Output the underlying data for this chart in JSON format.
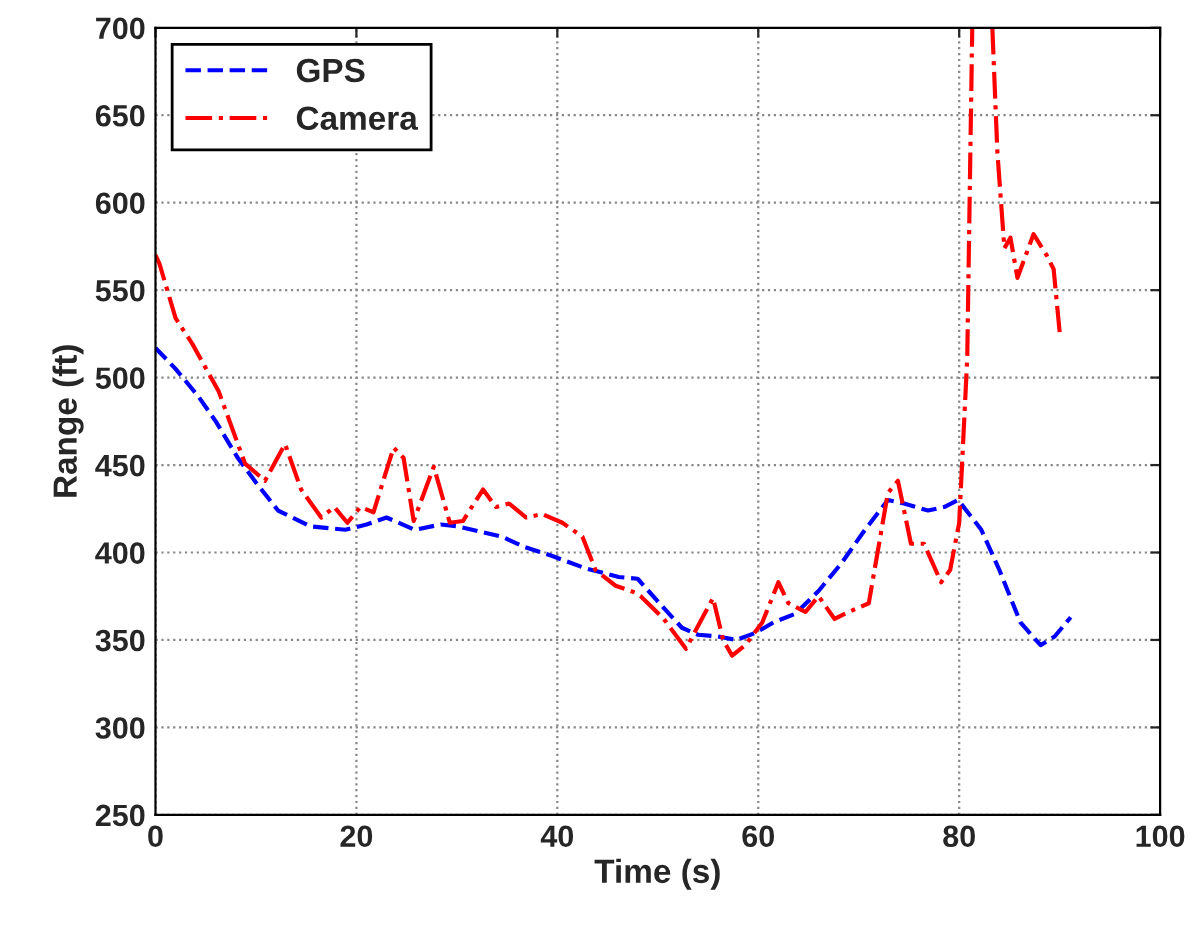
{
  "chart_data": {
    "type": "line",
    "xlabel": "Time (s)",
    "ylabel": "Range (ft)",
    "xlim": [
      0,
      100
    ],
    "ylim": [
      250,
      700
    ],
    "xticks": [
      0,
      20,
      40,
      60,
      80,
      100
    ],
    "yticks": [
      250,
      300,
      350,
      400,
      450,
      500,
      550,
      600,
      650,
      700
    ],
    "grid": true,
    "legend": "top left",
    "marker": "none",
    "series": [
      {
        "name": "GPS",
        "color": "#0000ff",
        "line_style": "dashed",
        "x": [
          0,
          2,
          4.3,
          6,
          8.2,
          10,
          12.2,
          15.4,
          18.9,
          21,
          23,
          25.8,
          28.4,
          30,
          32.3,
          34.5,
          36.8,
          39.5,
          42.8,
          46.1,
          48,
          50,
          52.4,
          54,
          56,
          57.8,
          59.7,
          61.5,
          63.7,
          66,
          68.3,
          70.5,
          72.9,
          74.5,
          76.9,
          78.5,
          79.9,
          82.2,
          84,
          86.1,
          88.1,
          89.5,
          91.1
        ],
        "values": [
          517,
          505,
          489,
          475,
          454,
          440,
          424,
          415,
          413,
          416,
          420,
          413,
          416,
          415,
          412,
          409,
          403,
          398,
          391,
          386,
          385,
          372,
          357,
          353,
          352,
          350,
          354,
          360,
          365,
          378,
          394,
          412,
          430,
          428,
          424,
          426,
          430,
          413,
          390,
          360,
          347,
          352,
          363
        ]
      },
      {
        "name": "Camera",
        "color": "#ff0000",
        "line_style": "dashdot",
        "x": [
          0,
          0.4,
          2,
          3.7,
          6.3,
          8.9,
          10.9,
          12.9,
          14.5,
          16.5,
          17.8,
          19.1,
          20.4,
          21.7,
          23.7,
          24.7,
          25.7,
          27.7,
          29.3,
          30.6,
          32.6,
          33.9,
          35.2,
          36.9,
          38.5,
          40.5,
          42.5,
          43.8,
          45.8,
          47.8,
          48.3,
          50.6,
          52.8,
          55.5,
          56.5,
          57.4,
          58.7,
          60.4,
          62,
          63,
          64.7,
          66,
          67.6,
          69,
          71,
          72.9,
          73.9,
          75.2,
          76.5,
          78.2,
          79.1,
          80,
          80.8,
          81.3,
          82.3,
          83.3,
          83.8,
          84.5,
          85.1,
          85.8,
          87.4,
          88.7,
          89.4,
          90
        ],
        "values": [
          570,
          565,
          534,
          519,
          492,
          451,
          441,
          462,
          436,
          420,
          426,
          417,
          426,
          423,
          460,
          454,
          418,
          449,
          417,
          418,
          436,
          426,
          428,
          420,
          422,
          417,
          409,
          390,
          381,
          377,
          375,
          362,
          345,
          374,
          350,
          341,
          347,
          360,
          383,
          371,
          366,
          375,
          362,
          366,
          371,
          434,
          441,
          405,
          405,
          383,
          390,
          417,
          511,
          700,
          null,
          700,
          629,
          574,
          580,
          557,
          582,
          570,
          562,
          526
        ]
      }
    ]
  }
}
